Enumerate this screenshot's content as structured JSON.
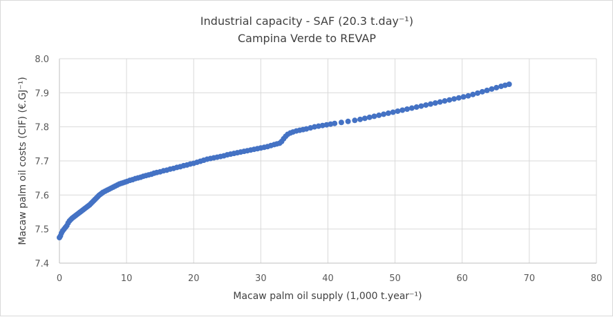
{
  "chart_data": {
    "type": "scatter",
    "title": "Industrial capacity - SAF (20.3 t.day⁻¹)",
    "subtitle": "Campina Verde to REVAP",
    "xlabel": "Macaw palm oil supply (1,000 t.year⁻¹)",
    "ylabel": "Macaw palm oil costs (CIF) (€.GJ⁻¹)",
    "xlim": [
      0,
      80
    ],
    "ylim": [
      7.4,
      8.0
    ],
    "x_ticks": [
      "0",
      "10",
      "20",
      "30",
      "40",
      "50",
      "60",
      "70",
      "80"
    ],
    "y_ticks": [
      "7.4",
      "7.5",
      "7.6",
      "7.7",
      "7.8",
      "7.9",
      "8.0"
    ],
    "grid": true,
    "marker_color": "#4472C4",
    "series": [
      {
        "points": [
          [
            0.0,
            7.475
          ],
          [
            0.15,
            7.48
          ],
          [
            0.3,
            7.488
          ],
          [
            0.5,
            7.495
          ],
          [
            0.7,
            7.5
          ],
          [
            0.9,
            7.505
          ],
          [
            1.1,
            7.51
          ],
          [
            1.3,
            7.518
          ],
          [
            1.5,
            7.524
          ],
          [
            1.7,
            7.528
          ],
          [
            1.9,
            7.532
          ],
          [
            2.1,
            7.535
          ],
          [
            2.3,
            7.538
          ],
          [
            2.5,
            7.541
          ],
          [
            2.7,
            7.544
          ],
          [
            2.9,
            7.547
          ],
          [
            3.1,
            7.55
          ],
          [
            3.3,
            7.553
          ],
          [
            3.5,
            7.556
          ],
          [
            3.7,
            7.559
          ],
          [
            3.9,
            7.562
          ],
          [
            4.1,
            7.565
          ],
          [
            4.3,
            7.568
          ],
          [
            4.5,
            7.571
          ],
          [
            4.7,
            7.575
          ],
          [
            4.9,
            7.579
          ],
          [
            5.1,
            7.583
          ],
          [
            5.3,
            7.587
          ],
          [
            5.5,
            7.591
          ],
          [
            5.7,
            7.595
          ],
          [
            5.9,
            7.599
          ],
          [
            6.1,
            7.602
          ],
          [
            6.3,
            7.605
          ],
          [
            6.5,
            7.608
          ],
          [
            6.8,
            7.611
          ],
          [
            7.1,
            7.614
          ],
          [
            7.4,
            7.617
          ],
          [
            7.7,
            7.62
          ],
          [
            8.0,
            7.623
          ],
          [
            8.3,
            7.626
          ],
          [
            8.6,
            7.629
          ],
          [
            8.9,
            7.632
          ],
          [
            9.2,
            7.634
          ],
          [
            9.5,
            7.636
          ],
          [
            9.8,
            7.638
          ],
          [
            10.1,
            7.64
          ],
          [
            10.5,
            7.643
          ],
          [
            10.9,
            7.645
          ],
          [
            11.3,
            7.648
          ],
          [
            11.7,
            7.65
          ],
          [
            12.1,
            7.652
          ],
          [
            12.5,
            7.655
          ],
          [
            12.9,
            7.657
          ],
          [
            13.3,
            7.659
          ],
          [
            13.7,
            7.661
          ],
          [
            14.1,
            7.664
          ],
          [
            14.5,
            7.666
          ],
          [
            15.0,
            7.668
          ],
          [
            15.5,
            7.671
          ],
          [
            16.0,
            7.673
          ],
          [
            16.5,
            7.676
          ],
          [
            17.0,
            7.678
          ],
          [
            17.5,
            7.681
          ],
          [
            18.0,
            7.683
          ],
          [
            18.5,
            7.686
          ],
          [
            19.0,
            7.688
          ],
          [
            19.5,
            7.691
          ],
          [
            20.0,
            7.693
          ],
          [
            20.5,
            7.696
          ],
          [
            21.0,
            7.699
          ],
          [
            21.5,
            7.702
          ],
          [
            22.0,
            7.705
          ],
          [
            22.5,
            7.707
          ],
          [
            23.0,
            7.709
          ],
          [
            23.5,
            7.711
          ],
          [
            24.0,
            7.713
          ],
          [
            24.5,
            7.715
          ],
          [
            25.0,
            7.718
          ],
          [
            25.5,
            7.72
          ],
          [
            26.0,
            7.722
          ],
          [
            26.5,
            7.724
          ],
          [
            27.0,
            7.726
          ],
          [
            27.5,
            7.728
          ],
          [
            28.0,
            7.73
          ],
          [
            28.5,
            7.732
          ],
          [
            29.0,
            7.734
          ],
          [
            29.5,
            7.736
          ],
          [
            30.0,
            7.738
          ],
          [
            30.5,
            7.74
          ],
          [
            31.0,
            7.742
          ],
          [
            31.5,
            7.745
          ],
          [
            32.0,
            7.748
          ],
          [
            32.4,
            7.75
          ],
          [
            32.8,
            7.752
          ],
          [
            33.1,
            7.757
          ],
          [
            33.4,
            7.765
          ],
          [
            33.7,
            7.772
          ],
          [
            34.0,
            7.778
          ],
          [
            34.4,
            7.782
          ],
          [
            34.8,
            7.785
          ],
          [
            35.3,
            7.788
          ],
          [
            35.8,
            7.79
          ],
          [
            36.3,
            7.792
          ],
          [
            36.8,
            7.794
          ],
          [
            37.4,
            7.797
          ],
          [
            38.0,
            7.8
          ],
          [
            38.6,
            7.802
          ],
          [
            39.2,
            7.804
          ],
          [
            39.8,
            7.806
          ],
          [
            40.4,
            7.808
          ],
          [
            41.0,
            7.81
          ],
          [
            42.0,
            7.813
          ],
          [
            43.0,
            7.816
          ],
          [
            44.0,
            7.819
          ],
          [
            44.8,
            7.822
          ],
          [
            45.5,
            7.825
          ],
          [
            46.2,
            7.828
          ],
          [
            46.9,
            7.831
          ],
          [
            47.6,
            7.834
          ],
          [
            48.3,
            7.837
          ],
          [
            49.0,
            7.84
          ],
          [
            49.7,
            7.843
          ],
          [
            50.4,
            7.846
          ],
          [
            51.1,
            7.849
          ],
          [
            51.8,
            7.852
          ],
          [
            52.5,
            7.855
          ],
          [
            53.2,
            7.858
          ],
          [
            53.9,
            7.861
          ],
          [
            54.6,
            7.864
          ],
          [
            55.3,
            7.867
          ],
          [
            56.0,
            7.87
          ],
          [
            56.7,
            7.873
          ],
          [
            57.4,
            7.876
          ],
          [
            58.1,
            7.879
          ],
          [
            58.8,
            7.882
          ],
          [
            59.5,
            7.885
          ],
          [
            60.2,
            7.888
          ],
          [
            60.9,
            7.891
          ],
          [
            61.6,
            7.895
          ],
          [
            62.3,
            7.899
          ],
          [
            63.0,
            7.903
          ],
          [
            63.7,
            7.907
          ],
          [
            64.4,
            7.911
          ],
          [
            65.1,
            7.915
          ],
          [
            65.8,
            7.919
          ],
          [
            66.4,
            7.922
          ],
          [
            67.0,
            7.925
          ]
        ]
      }
    ]
  }
}
